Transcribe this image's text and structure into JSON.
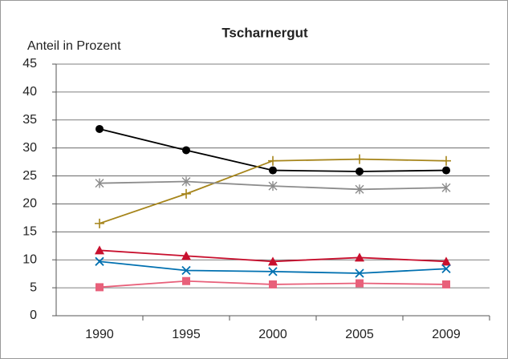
{
  "chart_data": {
    "type": "line",
    "title": "Tscharnergut",
    "y_label": "Anteil in Prozent",
    "categories": [
      "1990",
      "1995",
      "2000",
      "2005",
      "2009"
    ],
    "series": [
      {
        "color": "#000000",
        "marker": "circle",
        "values": [
          33.4,
          29.6,
          26.0,
          25.8,
          26.0
        ]
      },
      {
        "color": "#a6851b",
        "marker": "plus",
        "values": [
          16.5,
          21.8,
          27.7,
          28.0,
          27.7
        ]
      },
      {
        "color": "#8c8c8c",
        "marker": "star",
        "values": [
          23.7,
          24.0,
          23.2,
          22.6,
          22.9
        ]
      },
      {
        "color": "#c8102e",
        "marker": "triangle",
        "values": [
          11.7,
          10.7,
          9.7,
          10.4,
          9.7
        ]
      },
      {
        "color": "#0070b0",
        "marker": "x",
        "values": [
          9.7,
          8.1,
          7.9,
          7.6,
          8.4
        ]
      },
      {
        "color": "#e8607a",
        "marker": "square",
        "values": [
          5.1,
          6.2,
          5.6,
          5.8,
          5.6
        ]
      }
    ],
    "ylim": [
      0,
      45
    ],
    "yticks": [
      0,
      5,
      10,
      15,
      20,
      25,
      30,
      35,
      40,
      45
    ],
    "grid": true
  }
}
